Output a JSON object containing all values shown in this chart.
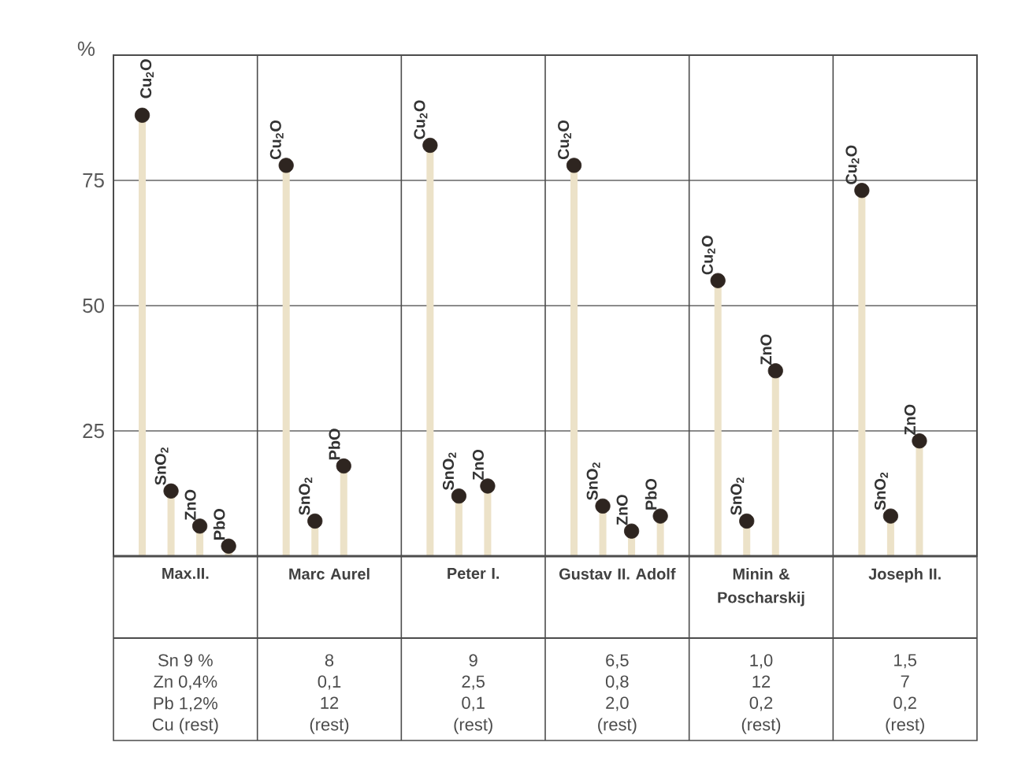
{
  "chart_data": {
    "type": "lollipop",
    "ylabel": "%",
    "categories": [
      "Max.II.",
      "Marc Aurel",
      "Peter I.",
      "Gustav II. Adolf",
      "Minin & Poscharskij",
      "Joseph II."
    ],
    "series": [
      {
        "name": "Cu$_{2}$O",
        "color": "#2e2520",
        "values": [
          88,
          78,
          82,
          78,
          55,
          73
        ]
      },
      {
        "name": "SnO$_{2}$",
        "color": "#2e2520",
        "values": [
          13,
          7,
          12,
          10,
          7,
          8
        ]
      },
      {
        "name": "ZnO",
        "color": "#2e2520",
        "values": [
          6,
          null,
          14,
          5,
          37,
          23
        ]
      },
      {
        "name": "PbO",
        "color": "#2e2520",
        "values": [
          2,
          18,
          null,
          8,
          null,
          null
        ]
      }
    ],
    "ylim": [
      0,
      100
    ],
    "yticks": [
      25,
      50,
      75
    ],
    "grid": "y",
    "marker": "circle",
    "annotations": [
      "Sn 9 %",
      "Zn 0,4%",
      "Pb 1,2%",
      "Cu (rest)",
      "8",
      "0,1",
      "12",
      "(rest)",
      "9",
      "2,5",
      "0,1",
      "(rest)",
      "6,5",
      "0,8",
      "2,0",
      "(rest)",
      "1,0",
      "12",
      "0,2",
      "(rest)",
      "1,5",
      "7",
      "0,2",
      "(rest)"
    ]
  }
}
